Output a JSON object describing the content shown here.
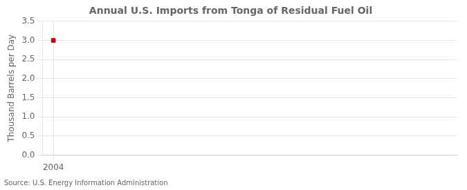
{
  "chart_data": {
    "type": "scatter",
    "title": "Annual U.S. Imports from Tonga of Residual Fuel Oil",
    "ylabel": "Thousand Barrels per Day",
    "source": "Source: U.S. Energy Information Administration",
    "x": [
      2004
    ],
    "values": [
      3.0
    ],
    "color": "#cc0000",
    "marker": "square",
    "xlim": [
      2003.3,
      2030
    ],
    "xticks": [
      2004
    ],
    "ylim": [
      0.0,
      3.5
    ],
    "yticks": [
      {
        "value": 0,
        "label": "0.0"
      },
      0.5,
      {
        "value": 1,
        "label": "1.0"
      },
      1.5,
      {
        "value": 2,
        "label": "2.0"
      },
      2.5,
      {
        "value": 3,
        "label": "3.0"
      },
      3.5
    ],
    "grid": true
  }
}
